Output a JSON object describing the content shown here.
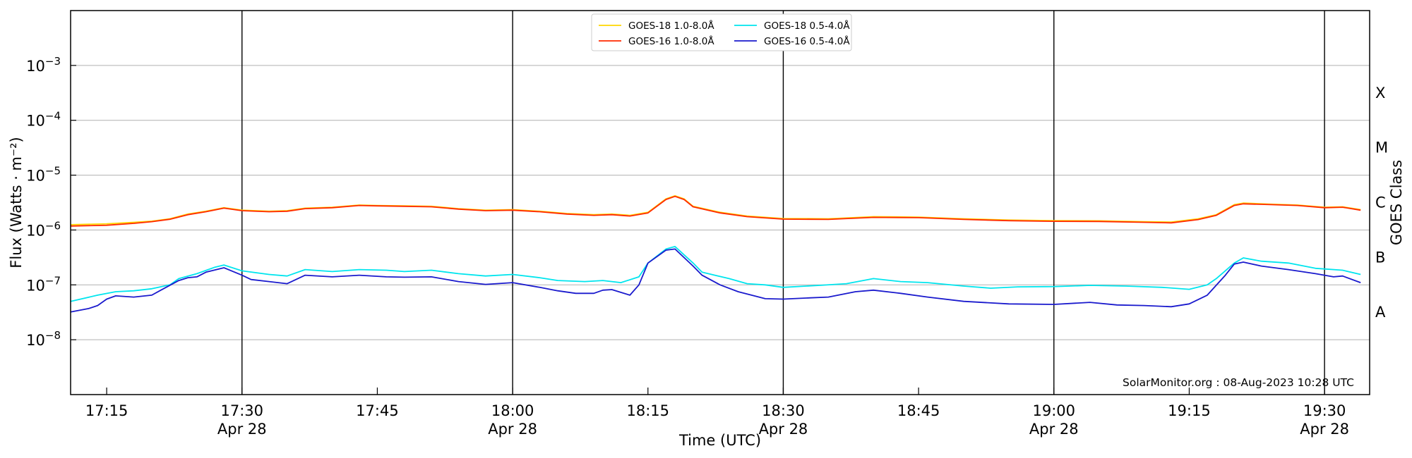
{
  "chart_data": {
    "type": "line",
    "title": "",
    "xlabel": "Time (UTC)",
    "ylabel": "Flux (Watts · m⁻²)",
    "ylabel_right": "GOES Class",
    "yscale": "log",
    "ylim": [
      1e-09,
      0.01
    ],
    "y_tick_labels": [
      {
        "value": 1e-08,
        "base": "10",
        "exp": "−8"
      },
      {
        "value": 1e-07,
        "base": "10",
        "exp": "−7"
      },
      {
        "value": 1e-06,
        "base": "10",
        "exp": "−6"
      },
      {
        "value": 1e-05,
        "base": "10",
        "exp": "−5"
      },
      {
        "value": 0.0001,
        "base": "10",
        "exp": "−4"
      },
      {
        "value": 0.001,
        "base": "10",
        "exp": "−3"
      }
    ],
    "goes_classes": [
      {
        "label": "A",
        "value": 3.16e-08
      },
      {
        "label": "B",
        "value": 3.16e-07
      },
      {
        "label": "C",
        "value": 3.16e-06
      },
      {
        "label": "M",
        "value": 3.16e-05
      },
      {
        "label": "X",
        "value": 0.000316
      }
    ],
    "xlim": [
      "17:11",
      "19:35"
    ],
    "x_ticks": [
      {
        "time": "17:15",
        "label": "17:15",
        "date": ""
      },
      {
        "time": "17:30",
        "label": "17:30",
        "date": "Apr 28"
      },
      {
        "time": "17:45",
        "label": "17:45",
        "date": ""
      },
      {
        "time": "18:00",
        "label": "18:00",
        "date": "Apr 28"
      },
      {
        "time": "18:15",
        "label": "18:15",
        "date": ""
      },
      {
        "time": "18:30",
        "label": "18:30",
        "date": "Apr 28"
      },
      {
        "time": "18:45",
        "label": "18:45",
        "date": ""
      },
      {
        "time": "19:00",
        "label": "19:00",
        "date": "Apr 28"
      },
      {
        "time": "19:15",
        "label": "19:15",
        "date": ""
      },
      {
        "time": "19:30",
        "label": "19:30",
        "date": "Apr 28"
      }
    ],
    "vertical_lines": [
      "17:30",
      "18:00",
      "18:30",
      "19:00",
      "19:30"
    ],
    "grid": "horizontal",
    "legend_position": "top-center",
    "annotation": "SolarMonitor.org : 08-Aug-2023 10:28 UTC",
    "series": [
      {
        "name": "GOES-18 1.0-8.0Å",
        "color": "#ffd700",
        "points": [
          [
            "17:11",
            1.25e-06
          ],
          [
            "17:15",
            1.3e-06
          ],
          [
            "17:18",
            1.38e-06
          ],
          [
            "17:20",
            1.45e-06
          ],
          [
            "17:22",
            1.6e-06
          ],
          [
            "17:24",
            1.95e-06
          ],
          [
            "17:26",
            2.2e-06
          ],
          [
            "17:28",
            2.55e-06
          ],
          [
            "17:30",
            2.3e-06
          ],
          [
            "17:33",
            2.2e-06
          ],
          [
            "17:35",
            2.25e-06
          ],
          [
            "17:37",
            2.5e-06
          ],
          [
            "17:40",
            2.6e-06
          ],
          [
            "17:43",
            2.85e-06
          ],
          [
            "17:45",
            2.8e-06
          ],
          [
            "17:48",
            2.75e-06
          ],
          [
            "17:51",
            2.7e-06
          ],
          [
            "17:54",
            2.45e-06
          ],
          [
            "17:57",
            2.3e-06
          ],
          [
            "18:00",
            2.35e-06
          ],
          [
            "18:03",
            2.2e-06
          ],
          [
            "18:06",
            2e-06
          ],
          [
            "18:09",
            1.9e-06
          ],
          [
            "18:11",
            1.95e-06
          ],
          [
            "18:13",
            1.85e-06
          ],
          [
            "18:15",
            2.1e-06
          ],
          [
            "18:17",
            3.7e-06
          ],
          [
            "18:18",
            4.2e-06
          ],
          [
            "18:19",
            3.7e-06
          ],
          [
            "18:20",
            2.7e-06
          ],
          [
            "18:23",
            2.1e-06
          ],
          [
            "18:26",
            1.8e-06
          ],
          [
            "18:30",
            1.62e-06
          ],
          [
            "18:35",
            1.6e-06
          ],
          [
            "18:40",
            1.75e-06
          ],
          [
            "18:45",
            1.72e-06
          ],
          [
            "18:50",
            1.6e-06
          ],
          [
            "18:55",
            1.52e-06
          ],
          [
            "19:00",
            1.48e-06
          ],
          [
            "19:05",
            1.47e-06
          ],
          [
            "19:10",
            1.42e-06
          ],
          [
            "19:13",
            1.4e-06
          ],
          [
            "19:16",
            1.6e-06
          ],
          [
            "19:18",
            1.9e-06
          ],
          [
            "19:20",
            2.9e-06
          ],
          [
            "19:21",
            3.1e-06
          ],
          [
            "19:24",
            2.95e-06
          ],
          [
            "19:27",
            2.85e-06
          ],
          [
            "19:30",
            2.6e-06
          ],
          [
            "19:32",
            2.65e-06
          ],
          [
            "19:34",
            2.35e-06
          ]
        ]
      },
      {
        "name": "GOES-16 1.0-8.0Å",
        "color": "#ff2a00",
        "points": [
          [
            "17:11",
            1.18e-06
          ],
          [
            "17:15",
            1.22e-06
          ],
          [
            "17:18",
            1.32e-06
          ],
          [
            "17:20",
            1.42e-06
          ],
          [
            "17:22",
            1.57e-06
          ],
          [
            "17:24",
            1.9e-06
          ],
          [
            "17:26",
            2.15e-06
          ],
          [
            "17:28",
            2.5e-06
          ],
          [
            "17:30",
            2.25e-06
          ],
          [
            "17:33",
            2.15e-06
          ],
          [
            "17:35",
            2.2e-06
          ],
          [
            "17:37",
            2.45e-06
          ],
          [
            "17:40",
            2.55e-06
          ],
          [
            "17:43",
            2.8e-06
          ],
          [
            "17:45",
            2.75e-06
          ],
          [
            "17:48",
            2.7e-06
          ],
          [
            "17:51",
            2.65e-06
          ],
          [
            "17:54",
            2.4e-06
          ],
          [
            "17:57",
            2.25e-06
          ],
          [
            "18:00",
            2.3e-06
          ],
          [
            "18:03",
            2.15e-06
          ],
          [
            "18:06",
            1.95e-06
          ],
          [
            "18:09",
            1.85e-06
          ],
          [
            "18:11",
            1.9e-06
          ],
          [
            "18:13",
            1.8e-06
          ],
          [
            "18:15",
            2.05e-06
          ],
          [
            "18:17",
            3.6e-06
          ],
          [
            "18:18",
            4.1e-06
          ],
          [
            "18:19",
            3.6e-06
          ],
          [
            "18:20",
            2.65e-06
          ],
          [
            "18:23",
            2.05e-06
          ],
          [
            "18:26",
            1.75e-06
          ],
          [
            "18:30",
            1.58e-06
          ],
          [
            "18:35",
            1.56e-06
          ],
          [
            "18:40",
            1.7e-06
          ],
          [
            "18:45",
            1.68e-06
          ],
          [
            "18:50",
            1.56e-06
          ],
          [
            "18:55",
            1.48e-06
          ],
          [
            "19:00",
            1.44e-06
          ],
          [
            "19:05",
            1.43e-06
          ],
          [
            "19:10",
            1.38e-06
          ],
          [
            "19:13",
            1.35e-06
          ],
          [
            "19:16",
            1.55e-06
          ],
          [
            "19:18",
            1.85e-06
          ],
          [
            "19:20",
            2.8e-06
          ],
          [
            "19:21",
            3e-06
          ],
          [
            "19:24",
            2.9e-06
          ],
          [
            "19:27",
            2.8e-06
          ],
          [
            "19:30",
            2.55e-06
          ],
          [
            "19:32",
            2.6e-06
          ],
          [
            "19:34",
            2.3e-06
          ]
        ]
      },
      {
        "name": "GOES-18 0.5-4.0Å",
        "color": "#00e5ee",
        "points": [
          [
            "17:11",
            5e-08
          ],
          [
            "17:14",
            6.5e-08
          ],
          [
            "17:16",
            7.5e-08
          ],
          [
            "17:18",
            7.8e-08
          ],
          [
            "17:20",
            8.5e-08
          ],
          [
            "17:22",
            1e-07
          ],
          [
            "17:23",
            1.3e-07
          ],
          [
            "17:25",
            1.6e-07
          ],
          [
            "17:27",
            2.1e-07
          ],
          [
            "17:28",
            2.3e-07
          ],
          [
            "17:30",
            1.8e-07
          ],
          [
            "17:33",
            1.55e-07
          ],
          [
            "17:35",
            1.45e-07
          ],
          [
            "17:37",
            1.9e-07
          ],
          [
            "17:40",
            1.75e-07
          ],
          [
            "17:43",
            1.9e-07
          ],
          [
            "17:46",
            1.85e-07
          ],
          [
            "17:48",
            1.75e-07
          ],
          [
            "17:51",
            1.85e-07
          ],
          [
            "17:54",
            1.6e-07
          ],
          [
            "17:57",
            1.45e-07
          ],
          [
            "18:00",
            1.55e-07
          ],
          [
            "18:03",
            1.35e-07
          ],
          [
            "18:05",
            1.2e-07
          ],
          [
            "18:08",
            1.15e-07
          ],
          [
            "18:10",
            1.2e-07
          ],
          [
            "18:12",
            1.1e-07
          ],
          [
            "18:14",
            1.4e-07
          ],
          [
            "18:15",
            2.5e-07
          ],
          [
            "18:17",
            4.5e-07
          ],
          [
            "18:18",
            5e-07
          ],
          [
            "18:20",
            2.5e-07
          ],
          [
            "18:21",
            1.7e-07
          ],
          [
            "18:24",
            1.3e-07
          ],
          [
            "18:26",
            1.05e-07
          ],
          [
            "18:28",
            1e-07
          ],
          [
            "18:30",
            9e-08
          ],
          [
            "18:34",
            9.8e-08
          ],
          [
            "18:37",
            1.05e-07
          ],
          [
            "18:40",
            1.3e-07
          ],
          [
            "18:43",
            1.15e-07
          ],
          [
            "18:46",
            1.1e-07
          ],
          [
            "18:50",
            9.5e-08
          ],
          [
            "18:53",
            8.7e-08
          ],
          [
            "18:56",
            9.2e-08
          ],
          [
            "19:00",
            9.3e-08
          ],
          [
            "19:04",
            9.8e-08
          ],
          [
            "19:08",
            9.5e-08
          ],
          [
            "19:12",
            9e-08
          ],
          [
            "19:15",
            8.3e-08
          ],
          [
            "19:17",
            1e-07
          ],
          [
            "19:18",
            1.3e-07
          ],
          [
            "19:20",
            2.5e-07
          ],
          [
            "19:21",
            3.1e-07
          ],
          [
            "19:23",
            2.7e-07
          ],
          [
            "19:26",
            2.5e-07
          ],
          [
            "19:29",
            2e-07
          ],
          [
            "19:32",
            1.85e-07
          ],
          [
            "19:34",
            1.55e-07
          ]
        ]
      },
      {
        "name": "GOES-16 0.5-4.0Å",
        "color": "#1a1acd",
        "points": [
          [
            "17:11",
            3.2e-08
          ],
          [
            "17:13",
            3.7e-08
          ],
          [
            "17:14",
            4.2e-08
          ],
          [
            "17:15",
            5.5e-08
          ],
          [
            "17:16",
            6.3e-08
          ],
          [
            "17:18",
            6e-08
          ],
          [
            "17:20",
            6.5e-08
          ],
          [
            "17:21",
            8e-08
          ],
          [
            "17:23",
            1.2e-07
          ],
          [
            "17:24",
            1.35e-07
          ],
          [
            "17:25",
            1.4e-07
          ],
          [
            "17:26",
            1.7e-07
          ],
          [
            "17:28",
            2.05e-07
          ],
          [
            "17:30",
            1.5e-07
          ],
          [
            "17:31",
            1.25e-07
          ],
          [
            "17:33",
            1.15e-07
          ],
          [
            "17:35",
            1.05e-07
          ],
          [
            "17:37",
            1.5e-07
          ],
          [
            "17:40",
            1.4e-07
          ],
          [
            "17:43",
            1.5e-07
          ],
          [
            "17:46",
            1.4e-07
          ],
          [
            "17:48",
            1.38e-07
          ],
          [
            "17:51",
            1.4e-07
          ],
          [
            "17:54",
            1.15e-07
          ],
          [
            "17:57",
            1.02e-07
          ],
          [
            "18:00",
            1.1e-07
          ],
          [
            "18:03",
            9e-08
          ],
          [
            "18:05",
            7.8e-08
          ],
          [
            "18:07",
            7e-08
          ],
          [
            "18:09",
            7e-08
          ],
          [
            "18:10",
            8e-08
          ],
          [
            "18:11",
            8.2e-08
          ],
          [
            "18:13",
            6.5e-08
          ],
          [
            "18:14",
            1e-07
          ],
          [
            "18:15",
            2.5e-07
          ],
          [
            "18:17",
            4.3e-07
          ],
          [
            "18:18",
            4.5e-07
          ],
          [
            "18:20",
            2.2e-07
          ],
          [
            "18:21",
            1.5e-07
          ],
          [
            "18:23",
            1e-07
          ],
          [
            "18:25",
            7.5e-08
          ],
          [
            "18:28",
            5.6e-08
          ],
          [
            "18:30",
            5.5e-08
          ],
          [
            "18:33",
            5.8e-08
          ],
          [
            "18:35",
            6e-08
          ],
          [
            "18:38",
            7.5e-08
          ],
          [
            "18:40",
            8e-08
          ],
          [
            "18:43",
            7e-08
          ],
          [
            "18:46",
            6e-08
          ],
          [
            "18:50",
            5e-08
          ],
          [
            "18:55",
            4.5e-08
          ],
          [
            "19:00",
            4.4e-08
          ],
          [
            "19:04",
            4.8e-08
          ],
          [
            "19:07",
            4.3e-08
          ],
          [
            "19:10",
            4.2e-08
          ],
          [
            "19:13",
            4e-08
          ],
          [
            "19:15",
            4.5e-08
          ],
          [
            "19:17",
            6.5e-08
          ],
          [
            "19:19",
            1.5e-07
          ],
          [
            "19:20",
            2.4e-07
          ],
          [
            "19:21",
            2.6e-07
          ],
          [
            "19:23",
            2.2e-07
          ],
          [
            "19:26",
            1.9e-07
          ],
          [
            "19:29",
            1.6e-07
          ],
          [
            "19:31",
            1.4e-07
          ],
          [
            "19:32",
            1.45e-07
          ],
          [
            "19:34",
            1.1e-07
          ]
        ]
      }
    ]
  }
}
